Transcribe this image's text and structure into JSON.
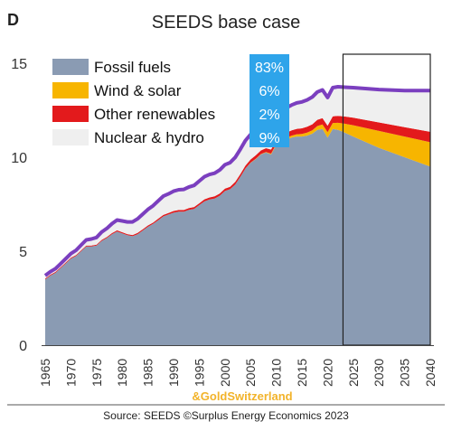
{
  "panel_letter": "D",
  "watermark": "&GoldSwitzerland",
  "source": "Source: SEEDS  ©Surplus Energy Economics 2023",
  "colors": {
    "fossil": "#8a9bb3",
    "wind_solar": "#f7b500",
    "other_renewables": "#e31a1c",
    "nuclear_hydro": "#efefef",
    "total_line": "#7b3fbf",
    "pct_box": "#2ea4ea"
  },
  "chart_data": {
    "type": "area",
    "title": "SEEDS base case",
    "xlabel": "",
    "ylabel": "",
    "xlim": [
      1965,
      2040
    ],
    "ylim": [
      0,
      15
    ],
    "x_ticks": [
      1965,
      1970,
      1975,
      1980,
      1985,
      1990,
      1995,
      2000,
      2005,
      2010,
      2015,
      2020,
      2025,
      2030,
      2035,
      2040
    ],
    "y_ticks": [
      0,
      5,
      10,
      15
    ],
    "grid": false,
    "legend_position": "top-left",
    "x": [
      1965,
      1966,
      1967,
      1968,
      1969,
      1970,
      1971,
      1972,
      1973,
      1974,
      1975,
      1976,
      1977,
      1978,
      1979,
      1980,
      1981,
      1982,
      1983,
      1984,
      1985,
      1986,
      1987,
      1988,
      1989,
      1990,
      1991,
      1992,
      1993,
      1994,
      1995,
      1996,
      1997,
      1998,
      1999,
      2000,
      2001,
      2002,
      2003,
      2004,
      2005,
      2006,
      2007,
      2008,
      2009,
      2010,
      2011,
      2012,
      2013,
      2014,
      2015,
      2016,
      2017,
      2018,
      2019,
      2020,
      2021,
      2022,
      2023,
      2025,
      2030,
      2035,
      2040
    ],
    "series": [
      {
        "name": "Fossil fuels",
        "values": [
          3.5,
          3.7,
          3.85,
          4.1,
          4.35,
          4.6,
          4.75,
          5.0,
          5.25,
          5.25,
          5.3,
          5.55,
          5.7,
          5.9,
          6.05,
          5.95,
          5.85,
          5.8,
          5.9,
          6.1,
          6.3,
          6.45,
          6.65,
          6.85,
          6.95,
          7.05,
          7.1,
          7.1,
          7.2,
          7.25,
          7.45,
          7.65,
          7.75,
          7.8,
          7.95,
          8.2,
          8.3,
          8.55,
          8.95,
          9.4,
          9.7,
          9.9,
          10.15,
          10.25,
          10.15,
          10.65,
          10.85,
          10.95,
          11.05,
          11.1,
          11.1,
          11.15,
          11.25,
          11.45,
          11.5,
          11.05,
          11.5,
          11.45,
          11.35,
          11.1,
          10.5,
          10.0,
          9.5
        ]
      },
      {
        "name": "Wind & solar",
        "values": [
          0,
          0,
          0,
          0,
          0,
          0,
          0,
          0,
          0,
          0,
          0,
          0,
          0,
          0,
          0,
          0,
          0,
          0,
          0,
          0,
          0,
          0,
          0,
          0,
          0,
          0,
          0,
          0,
          0,
          0,
          0,
          0,
          0,
          0,
          0,
          0,
          0,
          0,
          0,
          0,
          0.01,
          0.02,
          0.02,
          0.03,
          0.04,
          0.05,
          0.07,
          0.09,
          0.1,
          0.12,
          0.14,
          0.16,
          0.18,
          0.21,
          0.24,
          0.28,
          0.32,
          0.38,
          0.45,
          0.6,
          0.9,
          1.1,
          1.3
        ]
      },
      {
        "name": "Other renewables",
        "values": [
          0.05,
          0.05,
          0.05,
          0.05,
          0.05,
          0.05,
          0.05,
          0.05,
          0.05,
          0.05,
          0.05,
          0.05,
          0.06,
          0.06,
          0.06,
          0.06,
          0.06,
          0.06,
          0.07,
          0.07,
          0.07,
          0.07,
          0.08,
          0.08,
          0.08,
          0.09,
          0.09,
          0.09,
          0.1,
          0.1,
          0.1,
          0.11,
          0.11,
          0.12,
          0.12,
          0.13,
          0.13,
          0.14,
          0.15,
          0.16,
          0.17,
          0.18,
          0.19,
          0.2,
          0.22,
          0.24,
          0.26,
          0.27,
          0.28,
          0.29,
          0.3,
          0.31,
          0.32,
          0.33,
          0.34,
          0.35,
          0.36,
          0.37,
          0.38,
          0.4,
          0.45,
          0.5,
          0.55
        ]
      },
      {
        "name": "Nuclear & hydro",
        "values": [
          0.15,
          0.16,
          0.17,
          0.18,
          0.2,
          0.22,
          0.25,
          0.28,
          0.3,
          0.35,
          0.38,
          0.42,
          0.45,
          0.5,
          0.55,
          0.6,
          0.65,
          0.7,
          0.75,
          0.8,
          0.85,
          0.9,
          0.95,
          1.0,
          1.02,
          1.05,
          1.08,
          1.1,
          1.12,
          1.15,
          1.18,
          1.2,
          1.22,
          1.23,
          1.25,
          1.27,
          1.28,
          1.3,
          1.32,
          1.33,
          1.33,
          1.34,
          1.34,
          1.34,
          1.33,
          1.35,
          1.33,
          1.32,
          1.35,
          1.38,
          1.4,
          1.43,
          1.45,
          1.48,
          1.5,
          1.5,
          1.52,
          1.55,
          1.55,
          1.6,
          1.75,
          1.95,
          2.2
        ]
      }
    ],
    "total_line": [
      3.7,
      3.91,
      4.07,
      4.33,
      4.6,
      4.87,
      5.05,
      5.33,
      5.6,
      5.65,
      5.73,
      6.02,
      6.21,
      6.46,
      6.66,
      6.61,
      6.56,
      6.56,
      6.72,
      6.97,
      7.22,
      7.42,
      7.68,
      7.93,
      8.05,
      8.19,
      8.27,
      8.29,
      8.42,
      8.5,
      8.73,
      8.96,
      9.08,
      9.15,
      9.32,
      9.6,
      9.71,
      9.99,
      10.42,
      10.89,
      11.21,
      11.44,
      11.7,
      11.82,
      11.74,
      12.29,
      12.51,
      12.63,
      12.78,
      12.89,
      12.94,
      13.05,
      13.2,
      13.47,
      13.58,
      13.18,
      13.7,
      13.75,
      13.73,
      13.7,
      13.6,
      13.55,
      13.55
    ],
    "legend": [
      "Fossil fuels",
      "Wind & solar",
      "Other renewables",
      "Nuclear & hydro"
    ],
    "shares": [
      "83%",
      "6%",
      "2%",
      "9%"
    ],
    "projection_window": [
      2023,
      2040
    ]
  }
}
